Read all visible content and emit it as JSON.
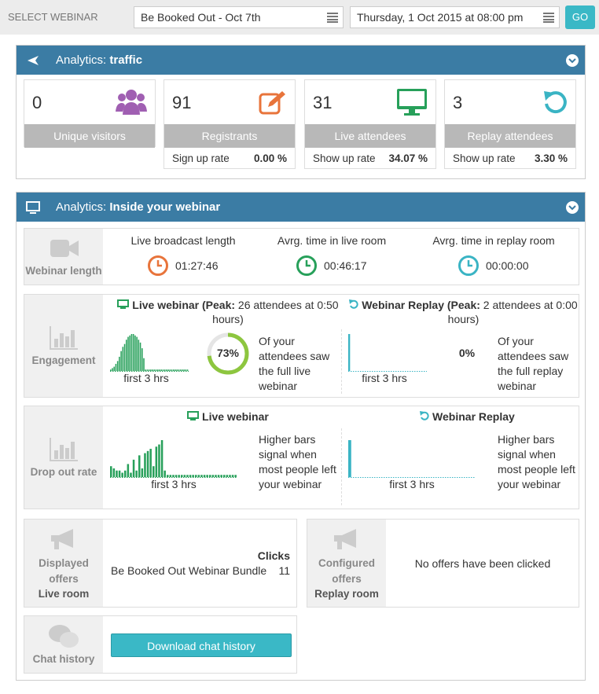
{
  "header": {
    "label": "SELECT WEBINAR",
    "webinar": "Be Booked Out - Oct 7th",
    "date": "Thursday, 1 Oct 2015 at 08:00 pm",
    "go": "GO"
  },
  "traffic": {
    "title_prefix": "Analytics:",
    "title_bold": "traffic",
    "cards": [
      {
        "value": 0,
        "label": "Unique visitors"
      },
      {
        "value": 91,
        "label": "Registrants",
        "rate_label": "Sign up rate",
        "rate": "0.00 %"
      },
      {
        "value": 31,
        "label": "Live attendees",
        "rate_label": "Show up rate",
        "rate": "34.07 %"
      },
      {
        "value": 3,
        "label": "Replay attendees",
        "rate_label": "Show up rate",
        "rate": "3.30 %"
      }
    ]
  },
  "inside": {
    "title_prefix": "Analytics:",
    "title_bold": "Inside your webinar",
    "length": {
      "label": "Webinar length",
      "stats": [
        {
          "label": "Live broadcast length",
          "value": "01:27:46"
        },
        {
          "label": "Avrg. time in live room",
          "value": "00:46:17"
        },
        {
          "label": "Avrg. time in replay room",
          "value": "00:00:00"
        }
      ]
    },
    "engagement": {
      "label": "Engagement",
      "live": {
        "title_bold": "Live webinar (Peak:",
        "title_rest": "26 attendees at 0:50 hours)",
        "axis": "first 3 hrs",
        "bars": [
          1,
          2,
          3,
          5,
          7,
          10,
          14,
          17,
          19,
          22,
          24,
          25,
          26,
          26,
          25,
          24,
          22,
          20,
          16,
          9,
          1,
          1,
          1,
          1,
          1,
          1,
          1,
          1,
          1,
          1,
          1,
          1,
          1,
          1,
          1,
          1,
          1,
          1,
          1,
          1,
          1,
          1,
          1,
          1,
          1
        ],
        "percent": {
          "value": 73,
          "label": "73%"
        },
        "caption": "Of your attendees saw the full live webinar"
      },
      "replay": {
        "title_bold": "Webinar Replay (Peak:",
        "title_rest": "2 attendees at 0:00 hours)",
        "axis": "first 3 hrs",
        "bars": [
          2,
          0,
          0,
          0,
          0,
          0,
          0,
          0,
          0,
          0,
          0,
          0,
          0,
          0,
          0,
          0,
          0,
          0,
          0,
          0,
          0,
          0,
          0,
          0,
          0,
          0,
          0,
          0,
          0,
          0
        ],
        "percent": "0%",
        "caption": "Of your attendees saw the full replay webinar"
      }
    },
    "dropout": {
      "label": "Drop out rate",
      "live": {
        "title": "Live webinar",
        "axis": "first 3 hrs",
        "bars": [
          5,
          4,
          3,
          3,
          2,
          3,
          6,
          2,
          8,
          3,
          10,
          4,
          11,
          12,
          13,
          5,
          14,
          15,
          17,
          3,
          1,
          1,
          1,
          1,
          1,
          1,
          1,
          1,
          1,
          1,
          1,
          1,
          1,
          1,
          1,
          1,
          1,
          1,
          1,
          1,
          1,
          1,
          1,
          1,
          1
        ],
        "caption": "Higher bars signal when most people left your webinar"
      },
      "replay": {
        "title": "Webinar Replay",
        "axis": "first 3 hrs",
        "bars": [
          1,
          0,
          0,
          0,
          0,
          0,
          0,
          0,
          0,
          0,
          0,
          0,
          0,
          0,
          0,
          0,
          0,
          0,
          0,
          0,
          0,
          0,
          0,
          0,
          0,
          0,
          0,
          0,
          0,
          0
        ],
        "caption": "Higher bars signal when most people left your webinar"
      }
    },
    "offers": {
      "live": {
        "label": "Displayed offers",
        "room": "Live room",
        "column": "Clicks",
        "rows": [
          {
            "name": "Be Booked Out Webinar Bundle",
            "clicks": 11
          }
        ]
      },
      "replay": {
        "label": "Configured offers",
        "room": "Replay room",
        "empty": "No offers have been clicked"
      }
    },
    "chat": {
      "label": "Chat history",
      "button": "Download chat history"
    }
  }
}
